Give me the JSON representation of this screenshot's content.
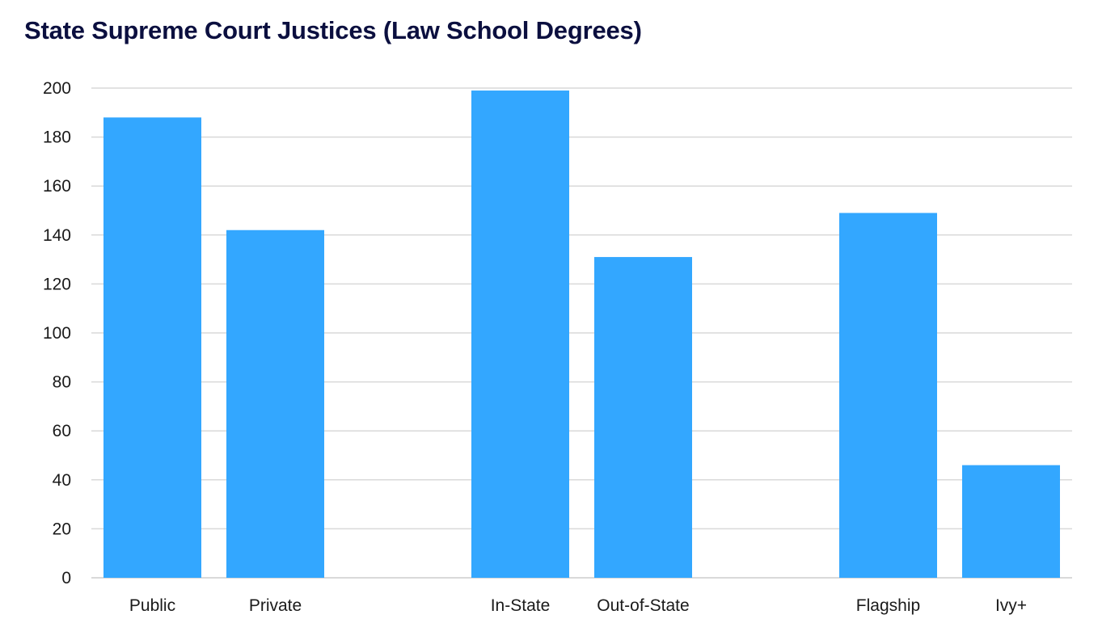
{
  "chart_data": {
    "type": "bar",
    "title": "State Supreme Court Justices (Law School Degrees)",
    "xlabel": "",
    "ylabel": "",
    "categories": [
      "Public",
      "Private",
      "In-State",
      "Out-of-State",
      "Flagship",
      "Ivy+"
    ],
    "values": [
      188,
      142,
      199,
      131,
      149,
      46
    ],
    "ylim": [
      0,
      200
    ],
    "yticks": [
      0,
      20,
      40,
      60,
      80,
      100,
      120,
      140,
      160,
      180,
      200
    ],
    "grid": true,
    "legend": "none",
    "bar_color": "#33a7ff",
    "grid_color": "#d9d9d9",
    "title_color": "#0b0f3f"
  }
}
